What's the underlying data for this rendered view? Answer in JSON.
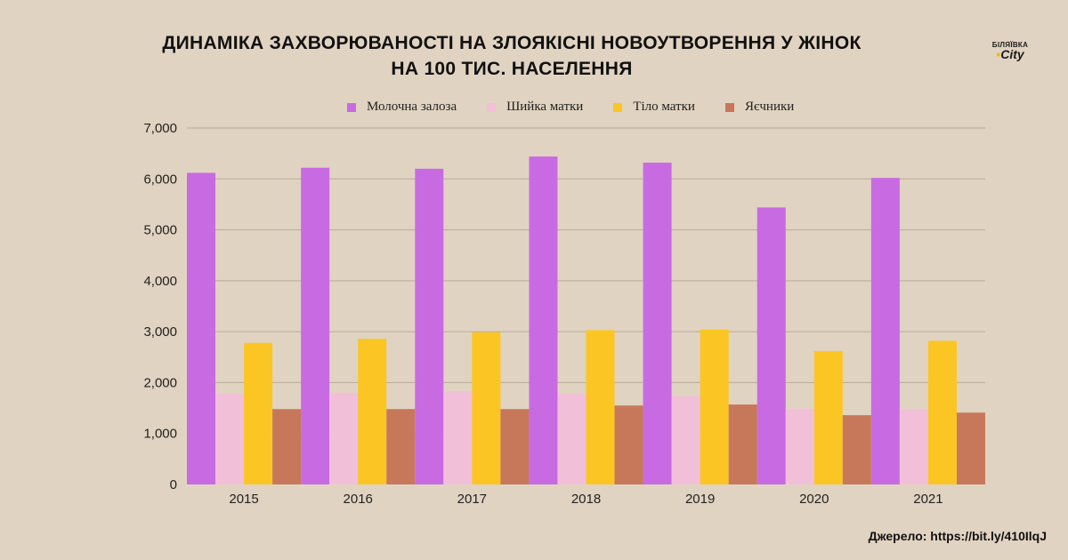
{
  "title_line1": "ДИНАМІКА ЗАХВОРЮВАНОСТІ НА ЗЛОЯКІСНІ НОВОУТВОРЕННЯ У ЖІНОК",
  "title_line2": "НА 100 ТИС. НАСЕЛЕННЯ",
  "logo": {
    "line1": "БІЛЯЇВКА",
    "line2": "City"
  },
  "source": "Джерело: https://bit.ly/410IlqJ",
  "chart_data": {
    "type": "bar",
    "categories": [
      "2015",
      "2016",
      "2017",
      "2018",
      "2019",
      "2020",
      "2021"
    ],
    "series": [
      {
        "name": "Молочна залоза",
        "color": "#c86be3",
        "values": [
          6120,
          6220,
          6200,
          6440,
          6320,
          5440,
          6020
        ]
      },
      {
        "name": "Шийка матки",
        "color": "#f2bfd9",
        "values": [
          1780,
          1800,
          1830,
          1780,
          1730,
          1480,
          1480
        ]
      },
      {
        "name": "Тіло матки",
        "color": "#fbc623",
        "values": [
          2780,
          2860,
          2990,
          3030,
          3040,
          2620,
          2820
        ]
      },
      {
        "name": "Яєчники",
        "color": "#c8785a",
        "values": [
          1480,
          1480,
          1480,
          1550,
          1570,
          1360,
          1410
        ]
      }
    ],
    "ylim": [
      0,
      7000
    ],
    "yticks": [
      0,
      1000,
      2000,
      3000,
      4000,
      5000,
      6000,
      7000
    ],
    "ytick_labels": [
      "0",
      "1,000",
      "2,000",
      "3,000",
      "4,000",
      "5,000",
      "6,000",
      "7,000"
    ],
    "grid": true,
    "legend": "top"
  }
}
